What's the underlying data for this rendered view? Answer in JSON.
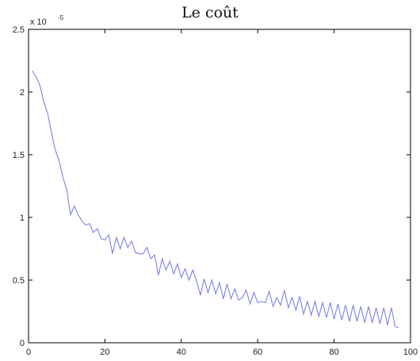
{
  "chart_data": {
    "type": "line",
    "title": "Le coût",
    "xlabel": "",
    "ylabel": "",
    "xlim": [
      0,
      100
    ],
    "ylim": [
      0,
      2.5
    ],
    "y_scale_label": "x 10",
    "y_scale_exponent": "-5",
    "x_ticks": [
      "0",
      "20",
      "40",
      "60",
      "80",
      "100"
    ],
    "y_ticks": [
      "0",
      "0.5",
      "1",
      "1.5",
      "2",
      "2.5"
    ],
    "grid": false,
    "series_color": "#7f7fe8",
    "series": [
      {
        "x": [
          1,
          2,
          3,
          4,
          5,
          6,
          7,
          8,
          9,
          10,
          11,
          12,
          13,
          14,
          15,
          16,
          17,
          18,
          19,
          20,
          21,
          22,
          23,
          24,
          25,
          26,
          27,
          28,
          29,
          30,
          31,
          32,
          33,
          34,
          35,
          36,
          37,
          38,
          39,
          40,
          41,
          42,
          43,
          44,
          45,
          46,
          47,
          48,
          49,
          50,
          51,
          52,
          53,
          54,
          55,
          56,
          57,
          58,
          59,
          60,
          61,
          62,
          63,
          64,
          65,
          66,
          67,
          68,
          69,
          70,
          71,
          72,
          73,
          74,
          75,
          76,
          77,
          78,
          79,
          80,
          81,
          82,
          83,
          84,
          85,
          86,
          87,
          88,
          89,
          90,
          91,
          92,
          93,
          94,
          95,
          96,
          97
        ],
        "values": [
          2.17,
          2.12,
          2.05,
          1.92,
          1.83,
          1.68,
          1.54,
          1.45,
          1.32,
          1.22,
          1.02,
          1.09,
          1.02,
          0.97,
          0.94,
          0.95,
          0.88,
          0.91,
          0.83,
          0.82,
          0.86,
          0.71,
          0.84,
          0.75,
          0.84,
          0.76,
          0.81,
          0.72,
          0.71,
          0.71,
          0.76,
          0.67,
          0.7,
          0.54,
          0.67,
          0.58,
          0.65,
          0.55,
          0.63,
          0.52,
          0.59,
          0.5,
          0.58,
          0.49,
          0.38,
          0.51,
          0.4,
          0.5,
          0.39,
          0.48,
          0.35,
          0.47,
          0.35,
          0.43,
          0.34,
          0.36,
          0.42,
          0.31,
          0.4,
          0.32,
          0.33,
          0.32,
          0.41,
          0.29,
          0.36,
          0.3,
          0.42,
          0.28,
          0.36,
          0.26,
          0.37,
          0.23,
          0.33,
          0.22,
          0.33,
          0.21,
          0.32,
          0.2,
          0.32,
          0.19,
          0.31,
          0.18,
          0.3,
          0.17,
          0.3,
          0.17,
          0.29,
          0.16,
          0.29,
          0.16,
          0.28,
          0.15,
          0.28,
          0.14,
          0.28,
          0.13,
          0.12
        ]
      }
    ]
  }
}
